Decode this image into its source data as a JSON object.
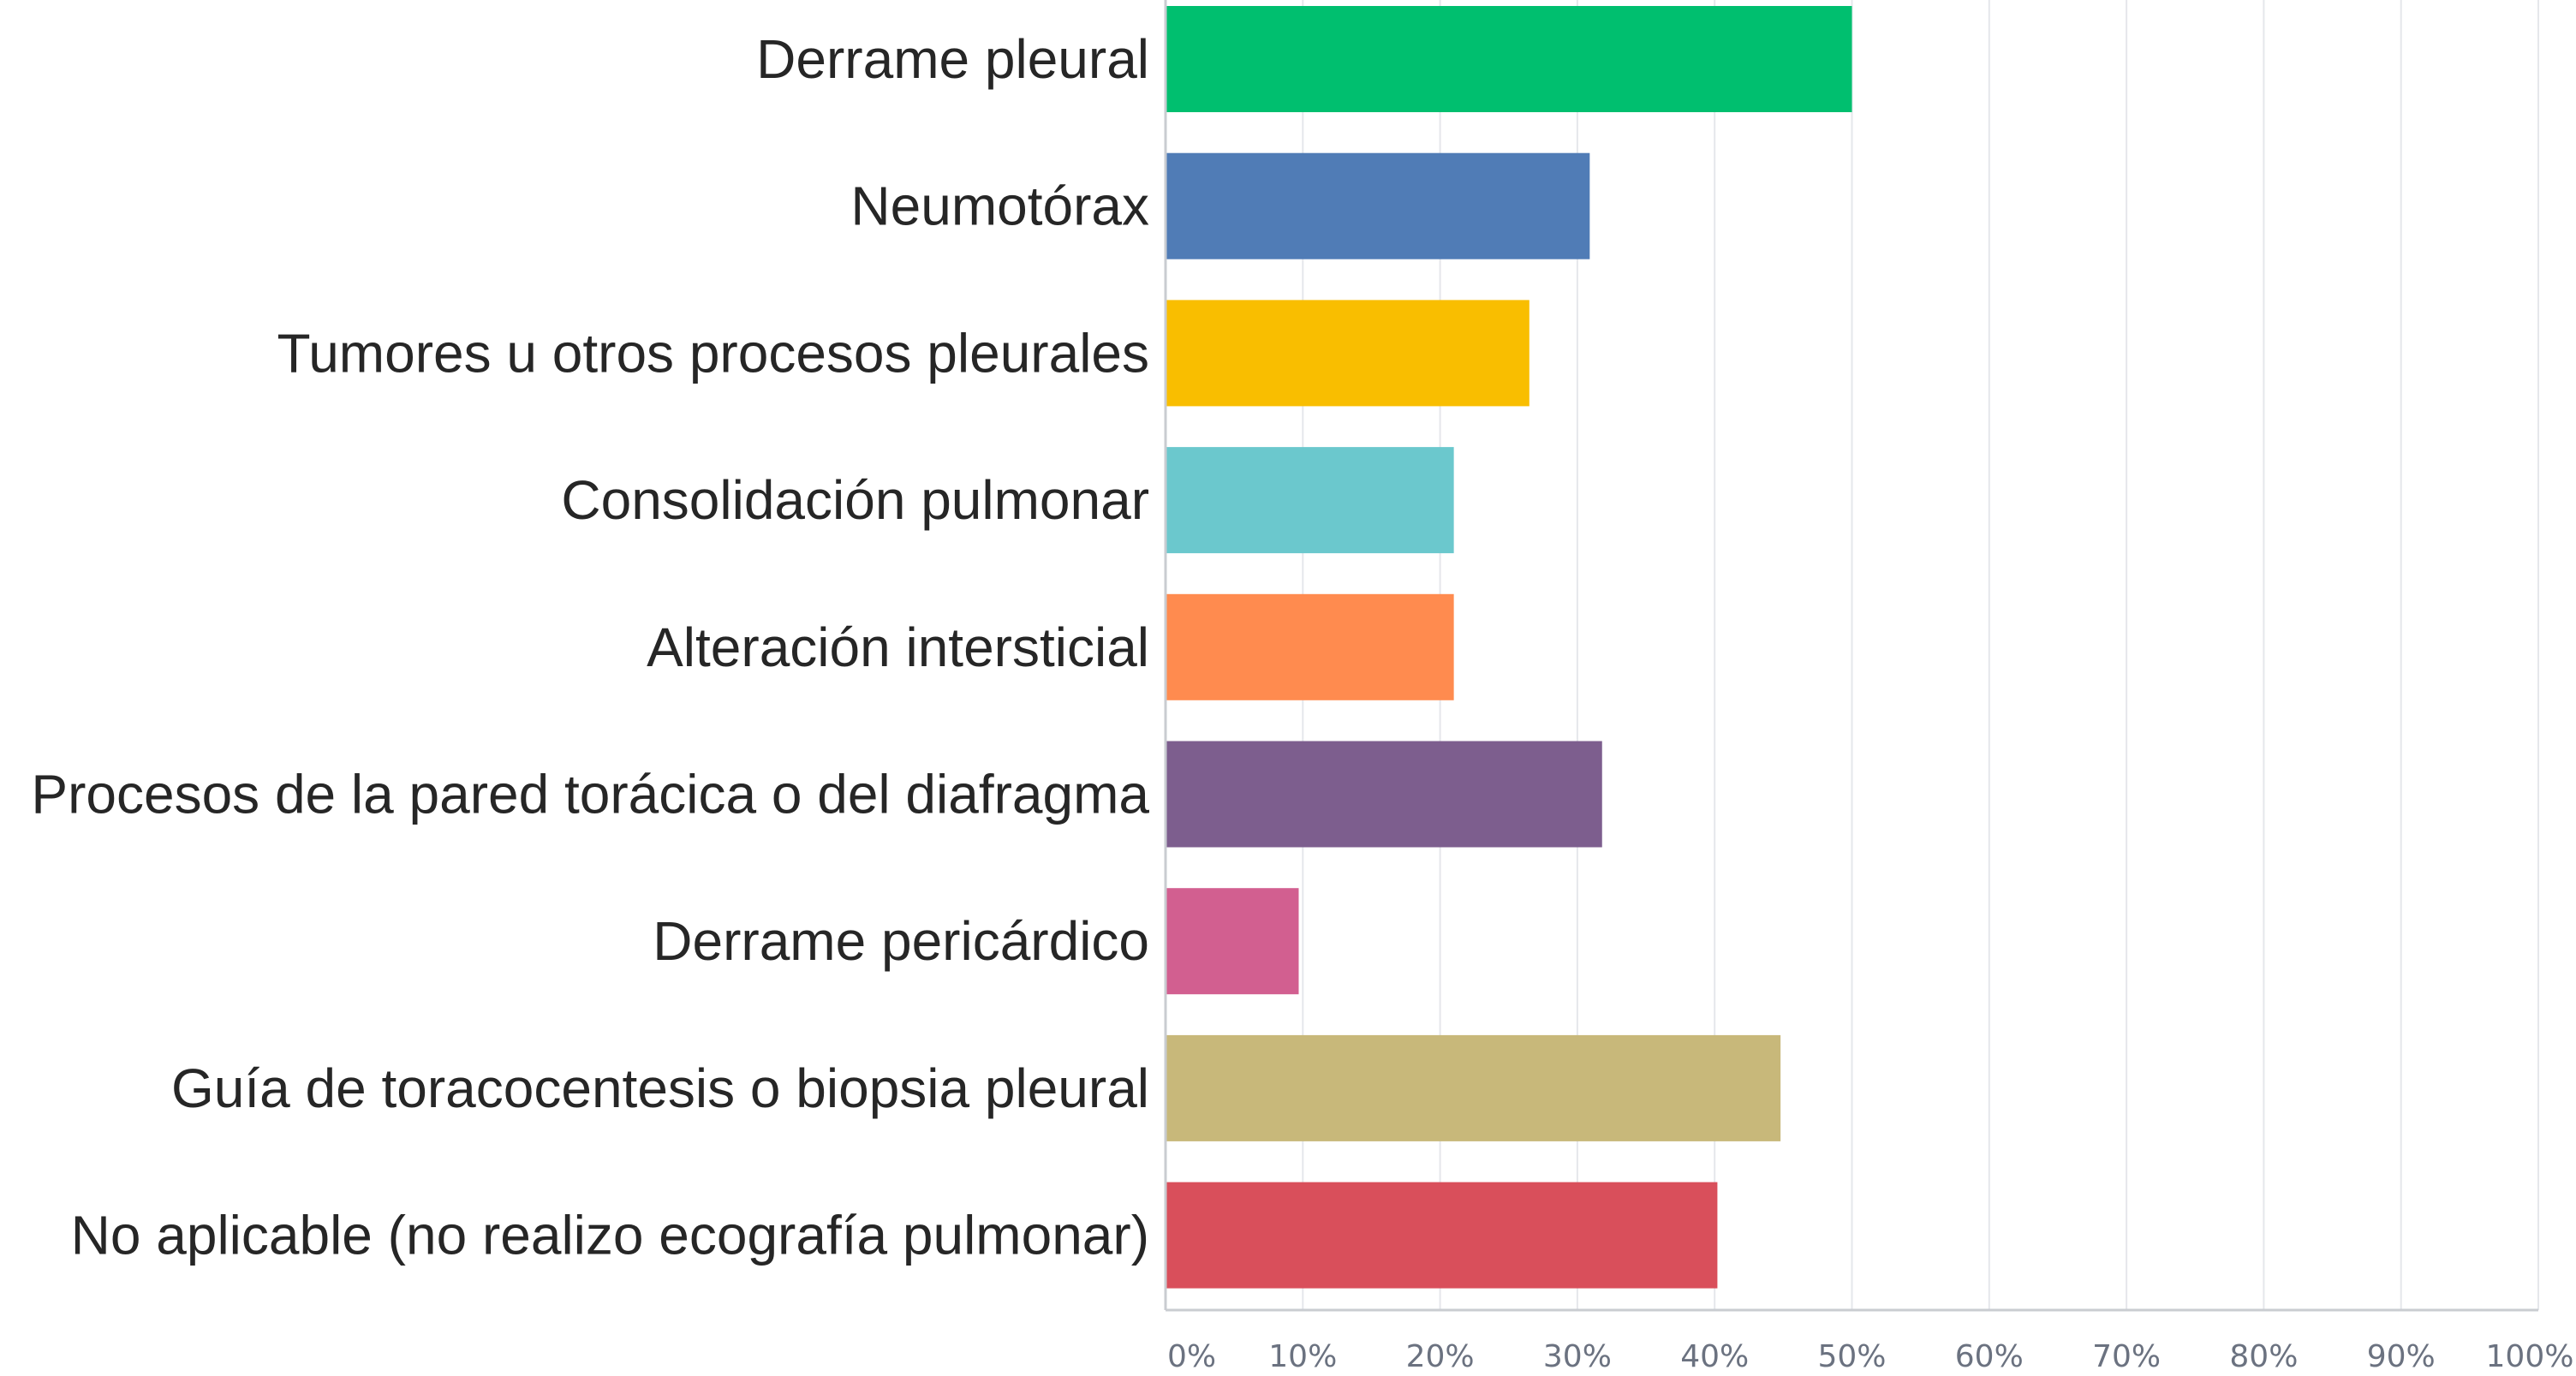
{
  "chart_data": {
    "type": "bar",
    "orientation": "horizontal",
    "title": "",
    "xlabel": "",
    "ylabel": "",
    "categories": [
      "Derrame pleural",
      "Neumotórax",
      "Tumores u otros procesos pleurales",
      "Consolidación pulmonar",
      "Alteración intersticial",
      "Procesos de la pared torácica o del diafragma",
      "Derrame pericárdico",
      "Guía de toracocentesis o biopsia pleural",
      "No aplicable (no realizo ecografía pulmonar)"
    ],
    "values": [
      50.0,
      30.9,
      26.5,
      21.0,
      21.0,
      31.8,
      9.7,
      44.8,
      40.2
    ],
    "colors": [
      "#00bf6f",
      "#507cb6",
      "#f9be00",
      "#6bc8cd",
      "#ff8b4f",
      "#7d5e8e",
      "#d25f90",
      "#c8b87a",
      "#d94f5b"
    ],
    "xlim": [
      0,
      100
    ],
    "x_ticks": [
      "0%",
      "10%",
      "20%",
      "30%",
      "40%",
      "50%",
      "60%",
      "70%",
      "80%",
      "90%",
      "100%"
    ],
    "x_tick_values": [
      0,
      10,
      20,
      30,
      40,
      50,
      60,
      70,
      80,
      90,
      100
    ],
    "grid": true,
    "legend": "none"
  }
}
